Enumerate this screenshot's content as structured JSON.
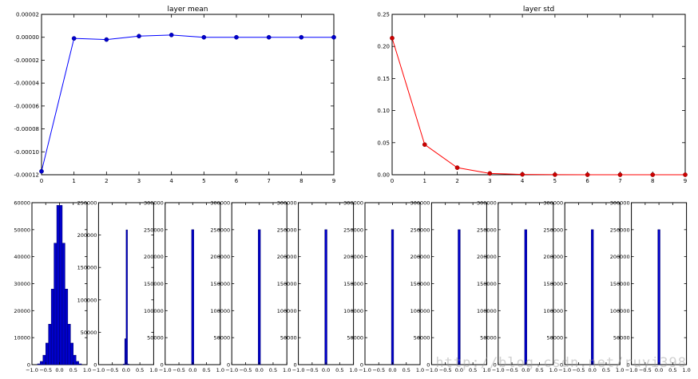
{
  "watermark": "http://blog.csdn.net/ruyi398",
  "chart_data": [
    {
      "type": "line",
      "title": "layer mean",
      "x": [
        0,
        1,
        2,
        3,
        4,
        5,
        6,
        7,
        8,
        9
      ],
      "series": [
        {
          "values": [
            -0.000117,
            -1e-06,
            -2e-06,
            1e-06,
            2e-06,
            0.0,
            0.0,
            0.0,
            0.0,
            0.0
          ]
        }
      ],
      "xlim": [
        0,
        9
      ],
      "ylim": [
        -0.00012,
        2e-05
      ],
      "xticks": [
        0,
        1,
        2,
        3,
        4,
        5,
        6,
        7,
        8,
        9
      ],
      "yticks": [
        -0.00012,
        -0.0001,
        -8e-05,
        -6e-05,
        -4e-05,
        -2e-05,
        0.0,
        2e-05
      ],
      "ytick_labels": [
        "-0.00012",
        "-0.00010",
        "-0.00008",
        "-0.00006",
        "-0.00004",
        "-0.00002",
        "0.00000",
        "0.00002"
      ],
      "color": "#0000ff",
      "grid": false
    },
    {
      "type": "line",
      "title": "layer std",
      "x": [
        0,
        1,
        2,
        3,
        4,
        5,
        6,
        7,
        8,
        9
      ],
      "series": [
        {
          "values": [
            0.213,
            0.047,
            0.011,
            0.002,
            0.0005,
            0.0001,
            0.0,
            0.0,
            0.0,
            0.0
          ]
        }
      ],
      "xlim": [
        0,
        9
      ],
      "ylim": [
        0,
        0.25
      ],
      "xticks": [
        0,
        1,
        2,
        3,
        4,
        5,
        6,
        7,
        8,
        9
      ],
      "yticks": [
        0.0,
        0.05,
        0.1,
        0.15,
        0.2,
        0.25
      ],
      "ytick_labels": [
        "0.00",
        "0.05",
        "0.10",
        "0.15",
        "0.20",
        "0.25"
      ],
      "color": "#ff0000",
      "grid": false
    },
    {
      "type": "bar",
      "bins": [
        -0.75,
        -0.65,
        -0.55,
        -0.45,
        -0.35,
        -0.25,
        -0.15,
        -0.05,
        0.05,
        0.15,
        0.25,
        0.35,
        0.45,
        0.55,
        0.65,
        0.75
      ],
      "values": [
        300,
        1200,
        3500,
        8000,
        15000,
        28000,
        45000,
        59000,
        59000,
        45000,
        28000,
        15000,
        8000,
        3500,
        1200,
        300
      ],
      "bin_width": 0.1,
      "xlim": [
        -1,
        1
      ],
      "ylim": [
        0,
        60000
      ],
      "xtick_labels": [
        "−1.0",
        "−0.5",
        "0.0",
        "0.5",
        "1.0"
      ],
      "yticks": [
        0,
        10000,
        20000,
        30000,
        40000,
        50000,
        60000
      ],
      "ytick_labels": [
        "0",
        "10000",
        "20000",
        "30000",
        "40000",
        "50000",
        "60000"
      ],
      "color": "#0000cc"
    },
    {
      "type": "bar",
      "bins": [
        -0.075,
        -0.025,
        0.025,
        0.075
      ],
      "values": [
        1000,
        40000,
        208000,
        1000
      ],
      "bin_width": 0.05,
      "xlim": [
        -1,
        1
      ],
      "ylim": [
        0,
        250000
      ],
      "xtick_labels": [
        "−1.0",
        "−0.5",
        "0.0",
        "0.5",
        "1.0"
      ],
      "yticks": [
        0,
        50000,
        100000,
        150000,
        200000,
        250000
      ],
      "ytick_labels": [
        "0",
        "50000",
        "100000",
        "150000",
        "200000",
        "250000"
      ],
      "color": "#0000cc"
    },
    {
      "type": "bar",
      "bins": [
        0.0
      ],
      "values": [
        250000
      ],
      "bin_width": 0.08,
      "xlim": [
        -1,
        1
      ],
      "ylim": [
        0,
        300000
      ],
      "xtick_labels": [
        "−1.0",
        "−0.5",
        "0.0",
        "0.5",
        "1.0"
      ],
      "yticks": [
        0,
        50000,
        100000,
        150000,
        200000,
        250000,
        300000
      ],
      "ytick_labels": [
        "0",
        "50000",
        "100000",
        "150000",
        "200000",
        "250000",
        "300000"
      ],
      "color": "#0000cc"
    },
    {
      "type": "bar",
      "bins": [
        0.0
      ],
      "values": [
        250000
      ],
      "bin_width": 0.08,
      "xlim": [
        -1,
        1
      ],
      "ylim": [
        0,
        300000
      ],
      "xtick_labels": [
        "−1.0",
        "−0.5",
        "0.0",
        "0.5",
        "1.0"
      ],
      "yticks": [
        0,
        50000,
        100000,
        150000,
        200000,
        250000,
        300000
      ],
      "ytick_labels": [
        "0",
        "50000",
        "100000",
        "150000",
        "200000",
        "250000",
        "300000"
      ],
      "color": "#0000cc"
    },
    {
      "type": "bar",
      "bins": [
        0.0
      ],
      "values": [
        250000
      ],
      "bin_width": 0.08,
      "xlim": [
        -1,
        1
      ],
      "ylim": [
        0,
        300000
      ],
      "xtick_labels": [
        "−1.0",
        "−0.5",
        "0.0",
        "0.5",
        "1.0"
      ],
      "yticks": [
        0,
        50000,
        100000,
        150000,
        200000,
        250000,
        300000
      ],
      "ytick_labels": [
        "0",
        "50000",
        "100000",
        "150000",
        "200000",
        "250000",
        "300000"
      ],
      "color": "#0000cc"
    },
    {
      "type": "bar",
      "bins": [
        0.0
      ],
      "values": [
        250000
      ],
      "bin_width": 0.08,
      "xlim": [
        -1,
        1
      ],
      "ylim": [
        0,
        300000
      ],
      "xtick_labels": [
        "−1.0",
        "−0.5",
        "0.0",
        "0.5",
        "1.0"
      ],
      "yticks": [
        0,
        50000,
        100000,
        150000,
        200000,
        250000,
        300000
      ],
      "ytick_labels": [
        "0",
        "50000",
        "100000",
        "150000",
        "200000",
        "250000",
        "300000"
      ],
      "color": "#0000cc"
    },
    {
      "type": "bar",
      "bins": [
        0.0
      ],
      "values": [
        250000
      ],
      "bin_width": 0.08,
      "xlim": [
        -1,
        1
      ],
      "ylim": [
        0,
        300000
      ],
      "xtick_labels": [
        "−1.0",
        "−0.5",
        "0.0",
        "0.5",
        "1.0"
      ],
      "yticks": [
        0,
        50000,
        100000,
        150000,
        200000,
        250000,
        300000
      ],
      "ytick_labels": [
        "0",
        "50000",
        "100000",
        "150000",
        "200000",
        "250000",
        "300000"
      ],
      "color": "#0000cc"
    },
    {
      "type": "bar",
      "bins": [
        0.0
      ],
      "values": [
        250000
      ],
      "bin_width": 0.08,
      "xlim": [
        -1,
        1
      ],
      "ylim": [
        0,
        300000
      ],
      "xtick_labels": [
        "−1.0",
        "−0.5",
        "0.0",
        "0.5",
        "1.0"
      ],
      "yticks": [
        0,
        50000,
        100000,
        150000,
        200000,
        250000,
        300000
      ],
      "ytick_labels": [
        "0",
        "50000",
        "100000",
        "150000",
        "200000",
        "250000",
        "300000"
      ],
      "color": "#0000cc"
    },
    {
      "type": "bar",
      "bins": [
        0.0
      ],
      "values": [
        250000
      ],
      "bin_width": 0.08,
      "xlim": [
        -1,
        1
      ],
      "ylim": [
        0,
        300000
      ],
      "xtick_labels": [
        "−1.0",
        "−0.5",
        "0.0",
        "0.5",
        "1.0"
      ],
      "yticks": [
        0,
        50000,
        100000,
        150000,
        200000,
        250000,
        300000
      ],
      "ytick_labels": [
        "0",
        "50000",
        "100000",
        "150000",
        "200000",
        "250000",
        "300000"
      ],
      "color": "#0000cc"
    },
    {
      "type": "bar",
      "bins": [
        0.0
      ],
      "values": [
        250000
      ],
      "bin_width": 0.08,
      "xlim": [
        -1,
        1
      ],
      "ylim": [
        0,
        300000
      ],
      "xtick_labels": [
        "−1.0",
        "−0.5",
        "0.0",
        "0.5",
        "1.0"
      ],
      "yticks": [
        0,
        50000,
        100000,
        150000,
        200000,
        250000,
        300000
      ],
      "ytick_labels": [
        "0",
        "50000",
        "100000",
        "150000",
        "200000",
        "250000",
        "300000"
      ],
      "color": "#0000cc"
    }
  ]
}
